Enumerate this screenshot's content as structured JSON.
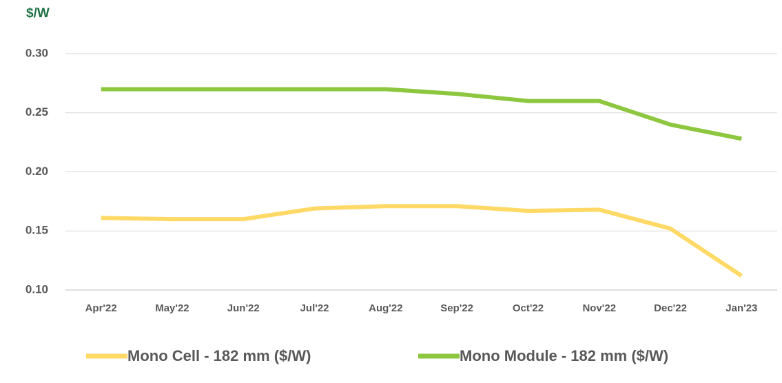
{
  "chart_data": {
    "type": "line",
    "y_axis_label": "$/W",
    "categories": [
      "Apr'22",
      "May'22",
      "Jun'22",
      "Jul'22",
      "Aug'22",
      "Sep'22",
      "Oct'22",
      "Nov'22",
      "Dec'22",
      "Jan'23"
    ],
    "series": [
      {
        "name": "Mono Cell - 182 mm ($/W)",
        "color": "#ffd966",
        "values": [
          0.161,
          0.16,
          0.16,
          0.169,
          0.171,
          0.171,
          0.167,
          0.168,
          0.152,
          0.112
        ]
      },
      {
        "name": "Mono Module - 182 mm ($/W)",
        "color": "#8dc63f",
        "values": [
          0.27,
          0.27,
          0.27,
          0.27,
          0.27,
          0.266,
          0.26,
          0.26,
          0.24,
          0.228
        ]
      }
    ],
    "ylim": [
      0.1,
      0.3
    ],
    "yticks": [
      {
        "value": 0.1,
        "label": "0.10"
      },
      {
        "value": 0.15,
        "label": "0.15"
      },
      {
        "value": 0.2,
        "label": "0.20"
      },
      {
        "value": 0.25,
        "label": "0.25"
      },
      {
        "value": 0.3,
        "label": "0.30"
      }
    ],
    "grid": true,
    "legend": "bottom"
  }
}
